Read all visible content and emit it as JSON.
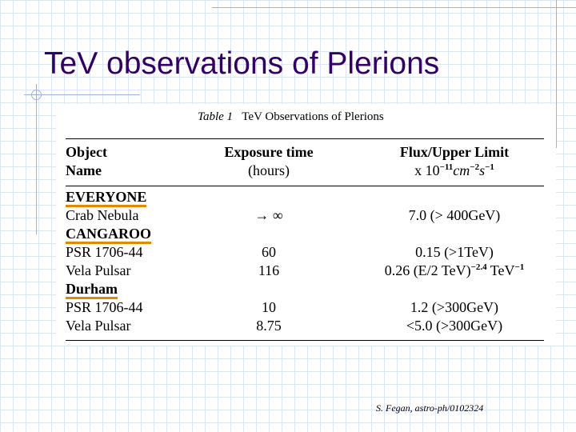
{
  "title": "TeV observations of Plerions",
  "table": {
    "caption": {
      "label": "Table 1",
      "text": "TeV Observations of Plerions"
    },
    "header": {
      "object": [
        "Object",
        "Name"
      ],
      "exposure": [
        "Exposure time",
        "(hours)"
      ],
      "flux": {
        "line1": "Flux/Upper Limit",
        "line2": [
          "x 10",
          "−11",
          "cm",
          "−2",
          "s",
          "−1"
        ]
      }
    },
    "groups": [
      {
        "name": "EVERYONE",
        "rows": [
          [
            "Crab Nebula",
            "→ ∞",
            "7.0 (> 400GeV)"
          ]
        ]
      },
      {
        "name": "CANGAROO",
        "rows": [
          [
            "PSR 1706-44",
            "60",
            "0.15 (>1TeV)"
          ],
          [
            "Vela Pulsar",
            "116",
            [
              "0.26 (E/2 TeV)",
              "−2.4",
              " TeV",
              "−1"
            ]
          ]
        ]
      },
      {
        "name": "Durham",
        "rows": [
          [
            "PSR 1706-44",
            "10",
            "1.2 (>300GeV)"
          ],
          [
            "Vela Pulsar",
            "8.75",
            "<5.0 (>300GeV)"
          ]
        ]
      }
    ]
  },
  "citation": "S. Fegan, astro-ph/0102324"
}
